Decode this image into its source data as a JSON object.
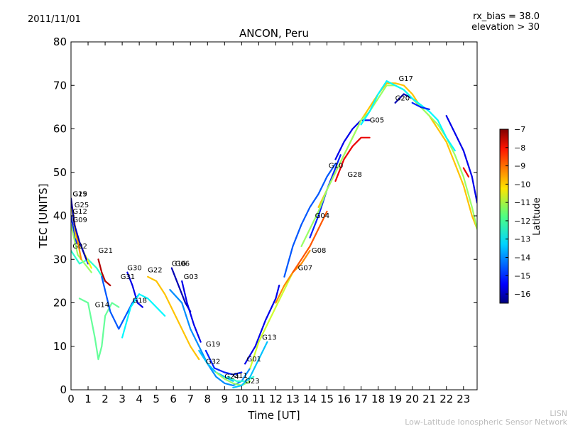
{
  "header": {
    "date": "2011/11/01",
    "rx_bias": "rx_bias = 38.0",
    "elevation": "elevation > 30"
  },
  "credits": {
    "line1": "LISN",
    "line2": "Low-Latitude Ionospheric Sensor Network"
  },
  "chart_data": {
    "type": "line",
    "title": "ANCON, Peru",
    "xlabel": "Time [UT]",
    "ylabel": "TEC [UNITS]",
    "xlim": [
      0,
      23.8
    ],
    "ylim": [
      0,
      80
    ],
    "x_ticks": [
      0,
      1,
      2,
      3,
      4,
      5,
      6,
      7,
      8,
      9,
      10,
      11,
      12,
      13,
      14,
      15,
      16,
      17,
      18,
      19,
      20,
      21,
      22,
      23
    ],
    "y_ticks": [
      0,
      10,
      20,
      30,
      40,
      50,
      60,
      70,
      80
    ],
    "colorbar": {
      "label": "Latitude",
      "range": [
        -16.5,
        -7
      ],
      "ticks": [
        -7,
        -8,
        -9,
        -10,
        -11,
        -12,
        -13,
        -14,
        -15,
        -16
      ]
    },
    "series": [
      {
        "name": "G02",
        "lat": -12.5,
        "label_at": [
          0.1,
          32.5
        ],
        "points": [
          [
            0,
            32
          ],
          [
            0.5,
            29
          ],
          [
            1.0,
            30
          ],
          [
            1.5,
            28
          ],
          [
            2.0,
            25
          ]
        ]
      },
      {
        "name": "G12",
        "lat": -15.0,
        "label_at": [
          0.1,
          40.5
        ],
        "points": [
          [
            0,
            40
          ],
          [
            0.3,
            34
          ],
          [
            0.6,
            33
          ],
          [
            1.0,
            29
          ]
        ]
      },
      {
        "name": "G09",
        "lat": -11.5,
        "label_at": [
          0.1,
          38.5
        ],
        "points": [
          [
            0,
            38
          ],
          [
            0.4,
            31
          ],
          [
            0.8,
            29
          ],
          [
            1.2,
            27
          ]
        ]
      },
      {
        "name": "G25",
        "lat": -10.5,
        "label_at": [
          0.2,
          42
        ],
        "points": [
          [
            0,
            43
          ],
          [
            0.3,
            35
          ],
          [
            0.7,
            32
          ],
          [
            1.2,
            28
          ]
        ]
      },
      {
        "name": "G15",
        "lat": -9.5,
        "label_at": [
          0.1,
          44.5
        ],
        "points": [
          [
            0,
            44
          ],
          [
            0.3,
            36
          ],
          [
            0.6,
            30
          ]
        ]
      },
      {
        "name": "G29",
        "lat": -16.0,
        "label_at": [
          0.1,
          44.5
        ],
        "points": [
          [
            0,
            44
          ],
          [
            0.2,
            38
          ],
          [
            0.5,
            34
          ],
          [
            0.9,
            30
          ]
        ]
      },
      {
        "name": "G14",
        "lat": -12.0,
        "label_at": [
          1.4,
          19
        ],
        "points": [
          [
            0.5,
            21
          ],
          [
            1.0,
            20
          ],
          [
            1.4,
            12
          ],
          [
            1.6,
            7
          ],
          [
            1.8,
            10
          ],
          [
            2.0,
            17
          ],
          [
            2.4,
            20
          ],
          [
            2.8,
            19
          ]
        ]
      },
      {
        "name": "G21",
        "lat": -7.5,
        "label_at": [
          1.6,
          31.5
        ],
        "points": [
          [
            1.6,
            30
          ],
          [
            1.8,
            27
          ],
          [
            2.0,
            25
          ],
          [
            2.3,
            24
          ]
        ]
      },
      {
        "name": "G31",
        "lat": -14.5,
        "label_at": [
          2.9,
          25.5
        ],
        "points": [
          [
            1.8,
            26
          ],
          [
            2.3,
            18
          ],
          [
            2.8,
            14
          ],
          [
            3.2,
            17
          ],
          [
            3.6,
            20
          ],
          [
            4.0,
            22
          ]
        ]
      },
      {
        "name": "G30",
        "lat": -15.5,
        "label_at": [
          3.3,
          27.5
        ],
        "points": [
          [
            3.3,
            27
          ],
          [
            3.6,
            24
          ],
          [
            3.9,
            20
          ],
          [
            4.2,
            19
          ]
        ]
      },
      {
        "name": "G18",
        "lat": -13.0,
        "label_at": [
          3.6,
          20
        ],
        "points": [
          [
            3.0,
            12
          ],
          [
            3.5,
            19
          ],
          [
            4.0,
            22
          ],
          [
            4.5,
            21
          ],
          [
            5.0,
            19
          ],
          [
            5.5,
            17
          ]
        ]
      },
      {
        "name": "G22",
        "lat": -10.0,
        "label_at": [
          4.5,
          27
        ],
        "points": [
          [
            4.5,
            26
          ],
          [
            5.0,
            25
          ],
          [
            5.5,
            22
          ],
          [
            6.0,
            18
          ],
          [
            6.5,
            14
          ],
          [
            7.0,
            10
          ],
          [
            7.5,
            7
          ]
        ]
      },
      {
        "name": "G16",
        "lat": -16.0,
        "label_at": [
          5.9,
          28.5
        ],
        "points": [
          [
            5.9,
            28
          ],
          [
            6.3,
            24
          ],
          [
            6.7,
            20
          ],
          [
            7.0,
            18
          ]
        ]
      },
      {
        "name": "G06",
        "lat": -14.0,
        "label_at": [
          6.1,
          28.5
        ],
        "points": [
          [
            5.8,
            23
          ],
          [
            6.5,
            20
          ],
          [
            7.0,
            14
          ],
          [
            7.5,
            10
          ],
          [
            8.0,
            6
          ],
          [
            8.5,
            3
          ],
          [
            9.0,
            1.5
          ],
          [
            9.5,
            1
          ],
          [
            10.0,
            2
          ],
          [
            10.5,
            5
          ]
        ]
      },
      {
        "name": "G03",
        "lat": -15.5,
        "label_at": [
          6.6,
          25.5
        ],
        "points": [
          [
            6.5,
            25
          ],
          [
            6.8,
            20
          ],
          [
            7.2,
            15
          ],
          [
            7.6,
            11
          ]
        ]
      },
      {
        "name": "G19",
        "lat": -15.0,
        "label_at": [
          7.9,
          10
        ],
        "points": [
          [
            7.9,
            9
          ],
          [
            8.4,
            5
          ],
          [
            9.0,
            4
          ],
          [
            9.5,
            3.5
          ],
          [
            10.0,
            4
          ]
        ]
      },
      {
        "name": "G32",
        "lat": -13.5,
        "label_at": [
          7.9,
          6
        ],
        "points": [
          [
            7.5,
            9
          ],
          [
            8.0,
            6
          ],
          [
            8.5,
            4
          ],
          [
            9.0,
            3
          ],
          [
            9.5,
            2
          ]
        ]
      },
      {
        "name": "G24",
        "lat": -11.5,
        "label_at": [
          9.0,
          2.5
        ],
        "points": [
          [
            8.5,
            4
          ],
          [
            9.0,
            2.5
          ],
          [
            9.5,
            1.5
          ],
          [
            10.0,
            1
          ],
          [
            10.5,
            2
          ]
        ]
      },
      {
        "name": "G11",
        "lat": -12.5,
        "label_at": [
          9.5,
          2.8
        ],
        "points": [
          [
            9.2,
            3
          ],
          [
            9.7,
            2
          ],
          [
            10.2,
            2
          ],
          [
            10.7,
            3
          ]
        ]
      },
      {
        "name": "G23",
        "lat": -13.5,
        "label_at": [
          10.2,
          1.5
        ],
        "points": [
          [
            9.5,
            0.5
          ],
          [
            10.0,
            1
          ],
          [
            10.5,
            3
          ],
          [
            11.0,
            7
          ],
          [
            11.5,
            11
          ]
        ]
      },
      {
        "name": "G01",
        "lat": -15.5,
        "label_at": [
          10.3,
          6.5
        ],
        "points": [
          [
            10.2,
            6
          ],
          [
            10.8,
            10
          ],
          [
            11.4,
            16
          ],
          [
            12.0,
            21
          ],
          [
            12.2,
            24
          ]
        ]
      },
      {
        "name": "G13",
        "lat": -11.0,
        "label_at": [
          11.2,
          11.5
        ],
        "points": [
          [
            10.5,
            5
          ],
          [
            11.0,
            11
          ],
          [
            11.5,
            15
          ],
          [
            12.0,
            19
          ],
          [
            12.5,
            23
          ],
          [
            13.0,
            27
          ]
        ]
      },
      {
        "name": "G07",
        "lat": -9.5,
        "label_at": [
          13.3,
          27.5
        ],
        "points": [
          [
            12.0,
            20
          ],
          [
            12.5,
            24
          ],
          [
            13.0,
            27
          ],
          [
            13.5,
            29
          ],
          [
            14.0,
            32
          ]
        ]
      },
      {
        "name": "G08",
        "lat": -9.0,
        "label_at": [
          14.1,
          31.5
        ],
        "points": [
          [
            13.0,
            27
          ],
          [
            13.5,
            30
          ],
          [
            14.0,
            33
          ],
          [
            14.5,
            37
          ],
          [
            15.0,
            41
          ]
        ]
      },
      {
        "name": "G04",
        "lat": -14.5,
        "label_at": [
          14.3,
          39.5
        ],
        "points": [
          [
            12.5,
            26
          ],
          [
            13.0,
            33
          ],
          [
            13.5,
            38
          ],
          [
            14.0,
            42
          ],
          [
            14.5,
            45
          ],
          [
            15.0,
            49
          ],
          [
            15.5,
            52
          ]
        ]
      },
      {
        "name": "G10",
        "lat": -15.0,
        "label_at": [
          15.1,
          51
        ],
        "points": [
          [
            14.0,
            35
          ],
          [
            14.5,
            40
          ],
          [
            15.0,
            46
          ],
          [
            15.5,
            51
          ],
          [
            15.8,
            54
          ]
        ]
      },
      {
        "name": "G28",
        "lat": -8.0,
        "label_at": [
          16.2,
          49
        ],
        "points": [
          [
            15.5,
            48
          ],
          [
            16.0,
            53
          ],
          [
            16.5,
            56
          ],
          [
            17.0,
            58
          ],
          [
            17.5,
            58
          ]
        ]
      },
      {
        "name": "G05",
        "lat": -15.5,
        "label_at": [
          17.5,
          61.5
        ],
        "points": [
          [
            15.5,
            53
          ],
          [
            16.0,
            57
          ],
          [
            16.5,
            60
          ],
          [
            17.0,
            62
          ],
          [
            17.5,
            62
          ]
        ]
      },
      {
        "name": "G20",
        "lat": -16.0,
        "label_at": [
          19.0,
          66.5
        ],
        "points": [
          [
            19.0,
            66
          ],
          [
            19.5,
            68
          ],
          [
            20.0,
            67
          ],
          [
            20.5,
            65
          ]
        ]
      },
      {
        "name": "G17",
        "lat": -10.0,
        "label_at": [
          19.2,
          71
        ],
        "points": [
          [
            14.5,
            42
          ],
          [
            15.0,
            46
          ],
          [
            15.5,
            50
          ],
          [
            16.0,
            54
          ],
          [
            16.5,
            58
          ],
          [
            17.0,
            62
          ],
          [
            17.5,
            65
          ],
          [
            18.0,
            68
          ],
          [
            18.5,
            70.5
          ],
          [
            19.0,
            70.5
          ],
          [
            19.5,
            70
          ],
          [
            20.0,
            68
          ],
          [
            20.5,
            65
          ],
          [
            21.0,
            63
          ],
          [
            21.5,
            60
          ],
          [
            22.0,
            57
          ],
          [
            22.5,
            52
          ],
          [
            23.0,
            47
          ],
          [
            23.5,
            40
          ],
          [
            23.8,
            37
          ]
        ]
      },
      {
        "name": "",
        "lat": -11.5,
        "label_at": null,
        "points": [
          [
            13.5,
            33
          ],
          [
            14.0,
            37
          ],
          [
            14.5,
            41
          ],
          [
            15.0,
            46
          ],
          [
            15.5,
            50
          ],
          [
            16.0,
            54
          ],
          [
            16.5,
            58
          ],
          [
            17.0,
            62
          ],
          [
            17.5,
            64
          ],
          [
            18.0,
            67
          ],
          [
            18.5,
            70
          ],
          [
            19.0,
            70
          ],
          [
            19.5,
            69
          ],
          [
            20.0,
            67
          ],
          [
            20.5,
            65
          ],
          [
            21.0,
            63
          ],
          [
            21.5,
            61
          ],
          [
            22.0,
            58
          ],
          [
            22.5,
            54
          ],
          [
            23.0,
            49
          ],
          [
            23.5,
            42
          ],
          [
            23.8,
            37
          ]
        ]
      },
      {
        "name": "",
        "lat": -13.0,
        "label_at": null,
        "points": [
          [
            17.0,
            61
          ],
          [
            17.5,
            64
          ],
          [
            18.0,
            68
          ],
          [
            18.5,
            71
          ],
          [
            19.0,
            70
          ],
          [
            19.5,
            69
          ],
          [
            20.0,
            67
          ],
          [
            20.5,
            65.5
          ],
          [
            21.0,
            64
          ],
          [
            21.5,
            62
          ],
          [
            22.0,
            58
          ],
          [
            22.5,
            55
          ]
        ]
      },
      {
        "name": "",
        "lat": -15.0,
        "label_at": null,
        "points": [
          [
            20.0,
            66
          ],
          [
            20.5,
            65
          ],
          [
            21.0,
            64.5
          ]
        ]
      },
      {
        "name": "",
        "lat": -15.5,
        "label_at": null,
        "points": [
          [
            22.0,
            63
          ],
          [
            22.5,
            59
          ],
          [
            23.0,
            55
          ],
          [
            23.5,
            49
          ],
          [
            23.8,
            43
          ]
        ]
      },
      {
        "name": "",
        "lat": -8.0,
        "label_at": null,
        "points": [
          [
            23.0,
            51
          ],
          [
            23.3,
            49
          ]
        ]
      }
    ]
  }
}
